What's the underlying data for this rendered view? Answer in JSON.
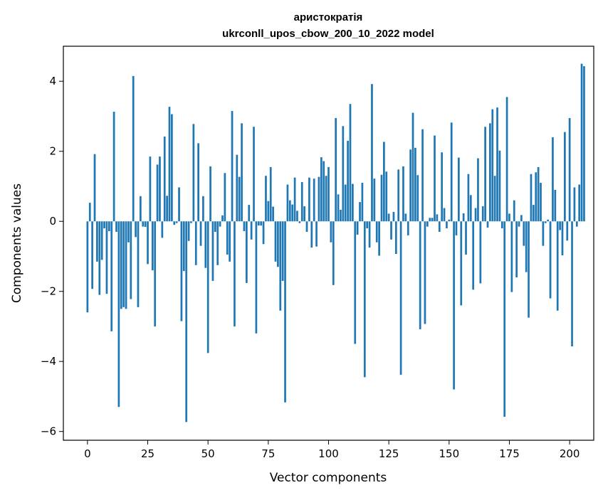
{
  "chart_data": {
    "type": "bar",
    "title": "аристократія",
    "subtitle": "ukrconll_upos_cbow_200_10_2022 model",
    "xlabel": "Vector components",
    "ylabel": "Components values",
    "xlim": [
      -10,
      210
    ],
    "ylim": [
      -6.25,
      5.0
    ],
    "xticks": [
      0,
      25,
      50,
      75,
      100,
      125,
      150,
      175,
      200
    ],
    "yticks": [
      -6,
      -4,
      -2,
      0,
      2,
      4
    ],
    "bar_color": "#1f77b4",
    "values": [
      -2.6,
      0.53,
      -1.93,
      1.92,
      -1.15,
      -2.1,
      -1.1,
      -0.2,
      -2.07,
      -0.28,
      -3.14,
      3.13,
      -0.3,
      -5.3,
      -2.5,
      -2.45,
      -2.5,
      -0.6,
      -2.22,
      4.15,
      -0.45,
      -2.45,
      0.72,
      -0.15,
      -0.16,
      -1.22,
      1.85,
      -1.4,
      -3.0,
      1.62,
      1.85,
      -0.47,
      2.42,
      0.73,
      3.27,
      3.06,
      -0.1,
      -0.05,
      0.97,
      -2.85,
      -1.42,
      -5.73,
      -0.56,
      -0.05,
      2.78,
      -1.25,
      2.23,
      -0.7,
      0.72,
      -1.33,
      -3.76,
      1.57,
      -1.7,
      -0.3,
      -1.25,
      -0.15,
      0.17,
      1.38,
      -0.95,
      -1.15,
      3.15,
      -3.0,
      1.9,
      1.27,
      2.8,
      -0.28,
      -1.76,
      0.47,
      -0.52,
      2.7,
      -3.2,
      -0.12,
      -0.12,
      -0.65,
      1.3,
      0.58,
      1.55,
      0.42,
      -1.15,
      -1.3,
      -2.55,
      -1.7,
      -5.17,
      1.05,
      0.6,
      0.48,
      1.25,
      0.3,
      -0.05,
      1.12,
      0.43,
      -0.3,
      1.25,
      -0.75,
      1.22,
      -0.72,
      1.27,
      1.83,
      1.72,
      1.3,
      1.55,
      -0.6,
      -1.82,
      2.95,
      0.77,
      0.33,
      2.72,
      1.05,
      2.3,
      3.35,
      1.07,
      -3.5,
      -0.38,
      0.55,
      1.1,
      -4.45,
      -0.2,
      -0.75,
      3.92,
      1.22,
      -0.6,
      -0.98,
      1.33,
      2.27,
      1.42,
      0.22,
      -0.52,
      0.27,
      -0.93,
      1.48,
      -4.38,
      1.57,
      0.22,
      -0.4,
      2.05,
      3.1,
      2.1,
      1.32,
      -3.08,
      2.63,
      -2.93,
      -0.15,
      0.1,
      0.1,
      2.45,
      0.2,
      -0.3,
      1.97,
      0.38,
      -0.2,
      0.05,
      2.82,
      -4.8,
      -0.4,
      1.82,
      -2.4,
      0.23,
      -0.95,
      1.35,
      0.75,
      -1.95,
      0.38,
      1.8,
      -1.77,
      0.43,
      2.7,
      -0.18,
      2.8,
      3.2,
      1.3,
      3.25,
      2.02,
      -0.2,
      -5.58,
      3.55,
      0.22,
      -2.02,
      0.6,
      -1.6,
      -0.15,
      0.18,
      -0.7,
      -1.45,
      -2.75,
      1.35,
      0.47,
      1.4,
      1.55,
      1.1,
      -0.7,
      -0.05,
      0.05,
      -2.2,
      2.4,
      0.9,
      -2.55,
      -0.25,
      -0.97,
      2.55,
      -0.55,
      2.95,
      -3.57,
      0.97,
      -0.15,
      1.05,
      4.5,
      4.43
    ]
  }
}
